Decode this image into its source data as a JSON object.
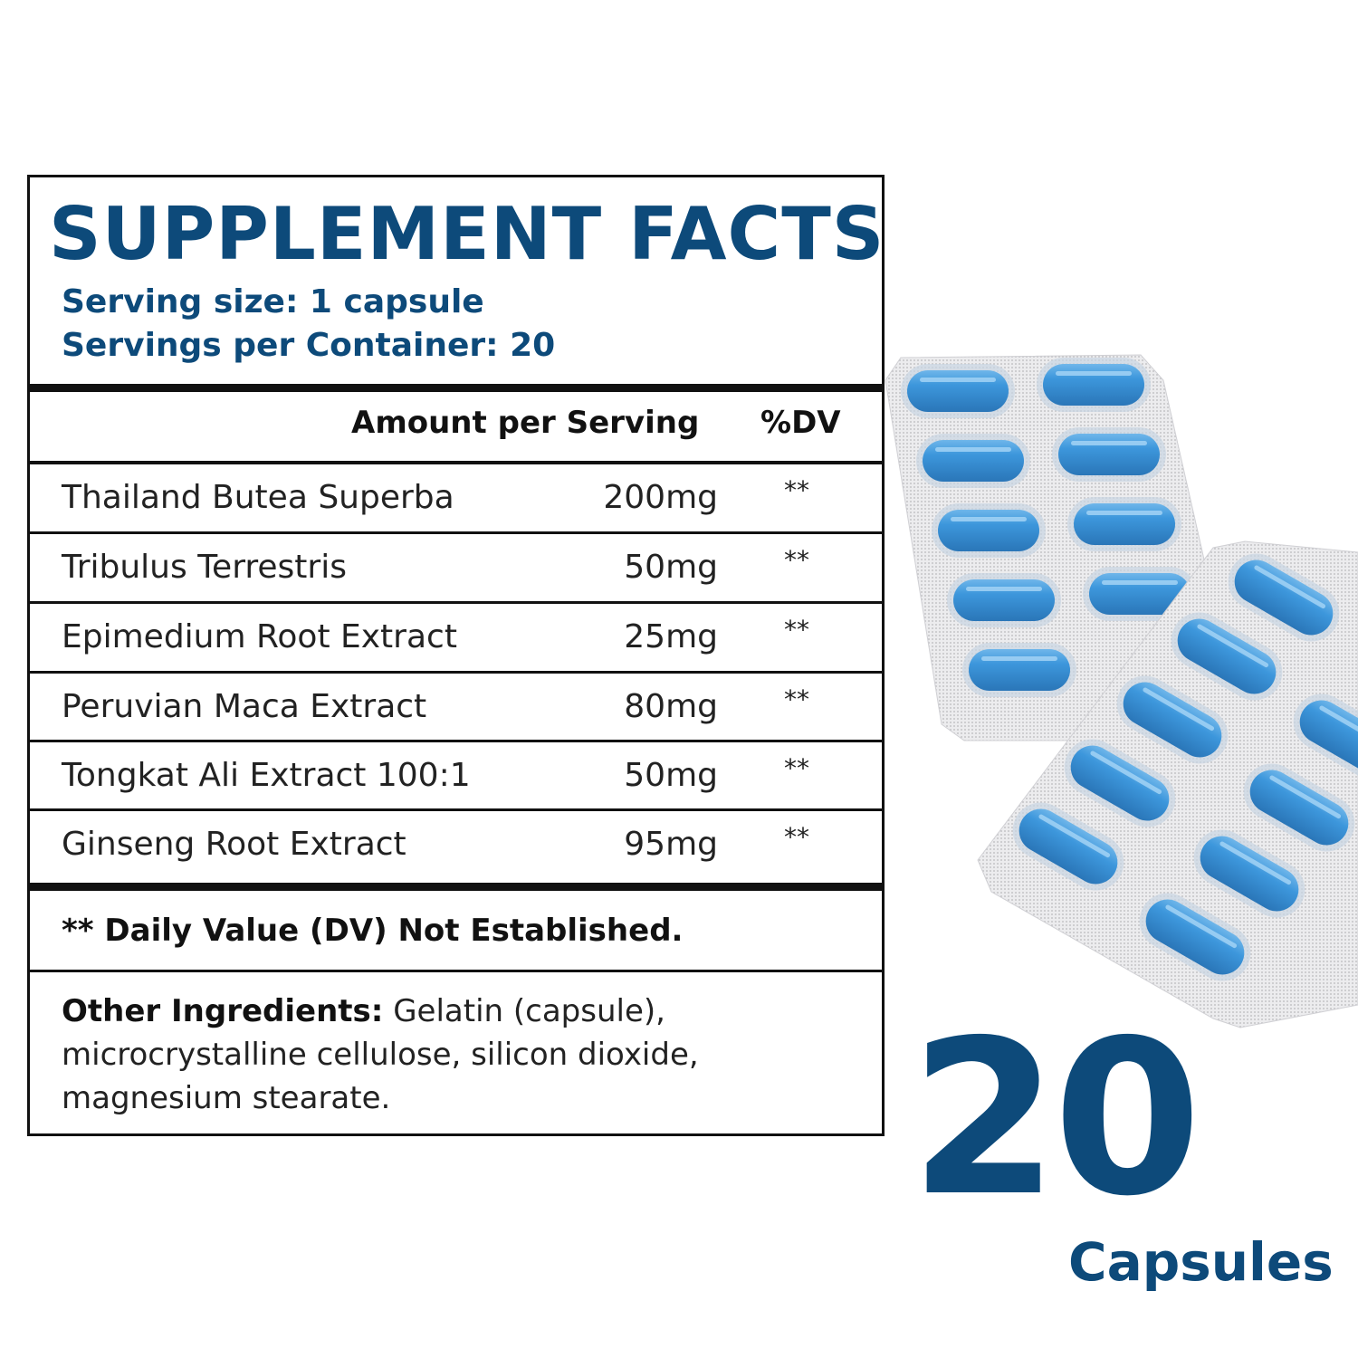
{
  "label": {
    "title": "SUPPLEMENT FACTS",
    "serving_size": "Serving size: 1 capsule",
    "servings_per_container": "Servings per Container: 20",
    "header_amount": "Amount per Serving",
    "header_dv": "%DV",
    "rows": [
      {
        "name": "Thailand Butea Superba",
        "amount": "200mg",
        "dv": "**"
      },
      {
        "name": "Tribulus Terrestris",
        "amount": "50mg",
        "dv": "**"
      },
      {
        "name": "Epimedium Root Extract",
        "amount": "25mg",
        "dv": "**"
      },
      {
        "name": "Peruvian Maca Extract",
        "amount": "80mg",
        "dv": "**"
      },
      {
        "name": "Tongkat Ali Extract 100:1",
        "amount": "50mg",
        "dv": "**"
      },
      {
        "name": "Ginseng Root Extract",
        "amount": "95mg",
        "dv": "**"
      }
    ],
    "footnote": "** Daily Value (DV) Not Established.",
    "other_ingredients_label": "Other Ingredients:",
    "other_ingredients_text": " Gelatin (capsule), microcrystalline cellulose, silicon dioxide, magnesium stearate."
  },
  "count": {
    "number": "20",
    "unit": "Capsules"
  },
  "colors": {
    "brand_blue": "#0d4a7a",
    "capsule_blue": "#3d97dc",
    "foil": "#e4e4e6"
  },
  "icons": [
    "blister-pack-image"
  ]
}
